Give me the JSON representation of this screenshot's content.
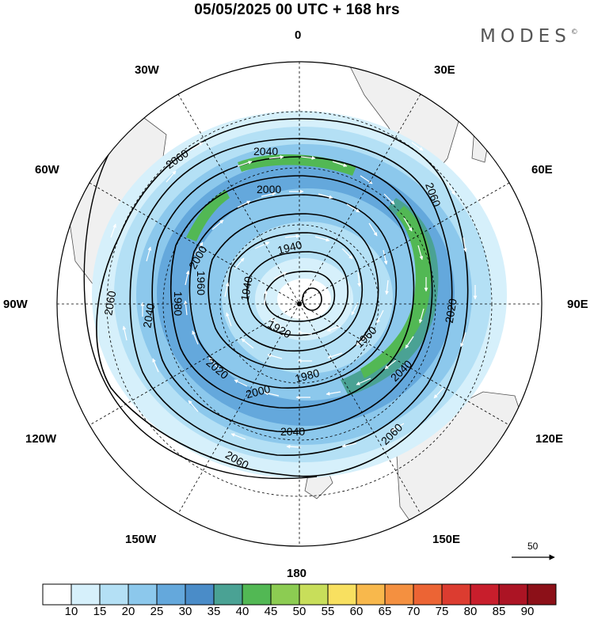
{
  "title": "05/05/2025  00 UTC  + 168 hrs",
  "brand": {
    "name": "MODES",
    "mark": "©"
  },
  "longitude_labels": [
    {
      "id": "lon-0",
      "text": "0"
    },
    {
      "id": "lon-30e",
      "text": "30E"
    },
    {
      "id": "lon-60e",
      "text": "60E"
    },
    {
      "id": "lon-90e",
      "text": "90E"
    },
    {
      "id": "lon-120e",
      "text": "120E"
    },
    {
      "id": "lon-150e",
      "text": "150E"
    },
    {
      "id": "lon-180",
      "text": "180"
    },
    {
      "id": "lon-150w",
      "text": "150W"
    },
    {
      "id": "lon-120w",
      "text": "120W"
    },
    {
      "id": "lon-90w",
      "text": "90W"
    },
    {
      "id": "lon-60w",
      "text": "60W"
    },
    {
      "id": "lon-30w",
      "text": "30W"
    }
  ],
  "contour_labels": [
    "2060",
    "2060",
    "2060",
    "2060",
    "2060",
    "2040",
    "2040",
    "2040",
    "2040",
    "2020",
    "2020",
    "2000",
    "2000",
    "2000",
    "1980",
    "1980",
    "1960",
    "1960",
    "1940",
    "1940",
    "1920"
  ],
  "reference_vector": {
    "value": "50"
  },
  "colorbar": {
    "ticks": [
      "10",
      "15",
      "20",
      "25",
      "30",
      "35",
      "40",
      "45",
      "50",
      "55",
      "60",
      "65",
      "70",
      "75",
      "80",
      "85",
      "90"
    ],
    "colors": [
      "#ffffff",
      "#d6f0fb",
      "#b4e0f5",
      "#8cc8ec",
      "#64a8dc",
      "#4a8cc8",
      "#4aa294",
      "#52b854",
      "#8ccc52",
      "#c8de5a",
      "#f8e060",
      "#f8b84c",
      "#f49040",
      "#ec6434",
      "#dc3c30",
      "#c81e2c",
      "#ac1424",
      "#8c1018"
    ]
  },
  "colors": {
    "land": "#f0f0f0",
    "coast": "#505050",
    "grid": "#000000"
  }
}
